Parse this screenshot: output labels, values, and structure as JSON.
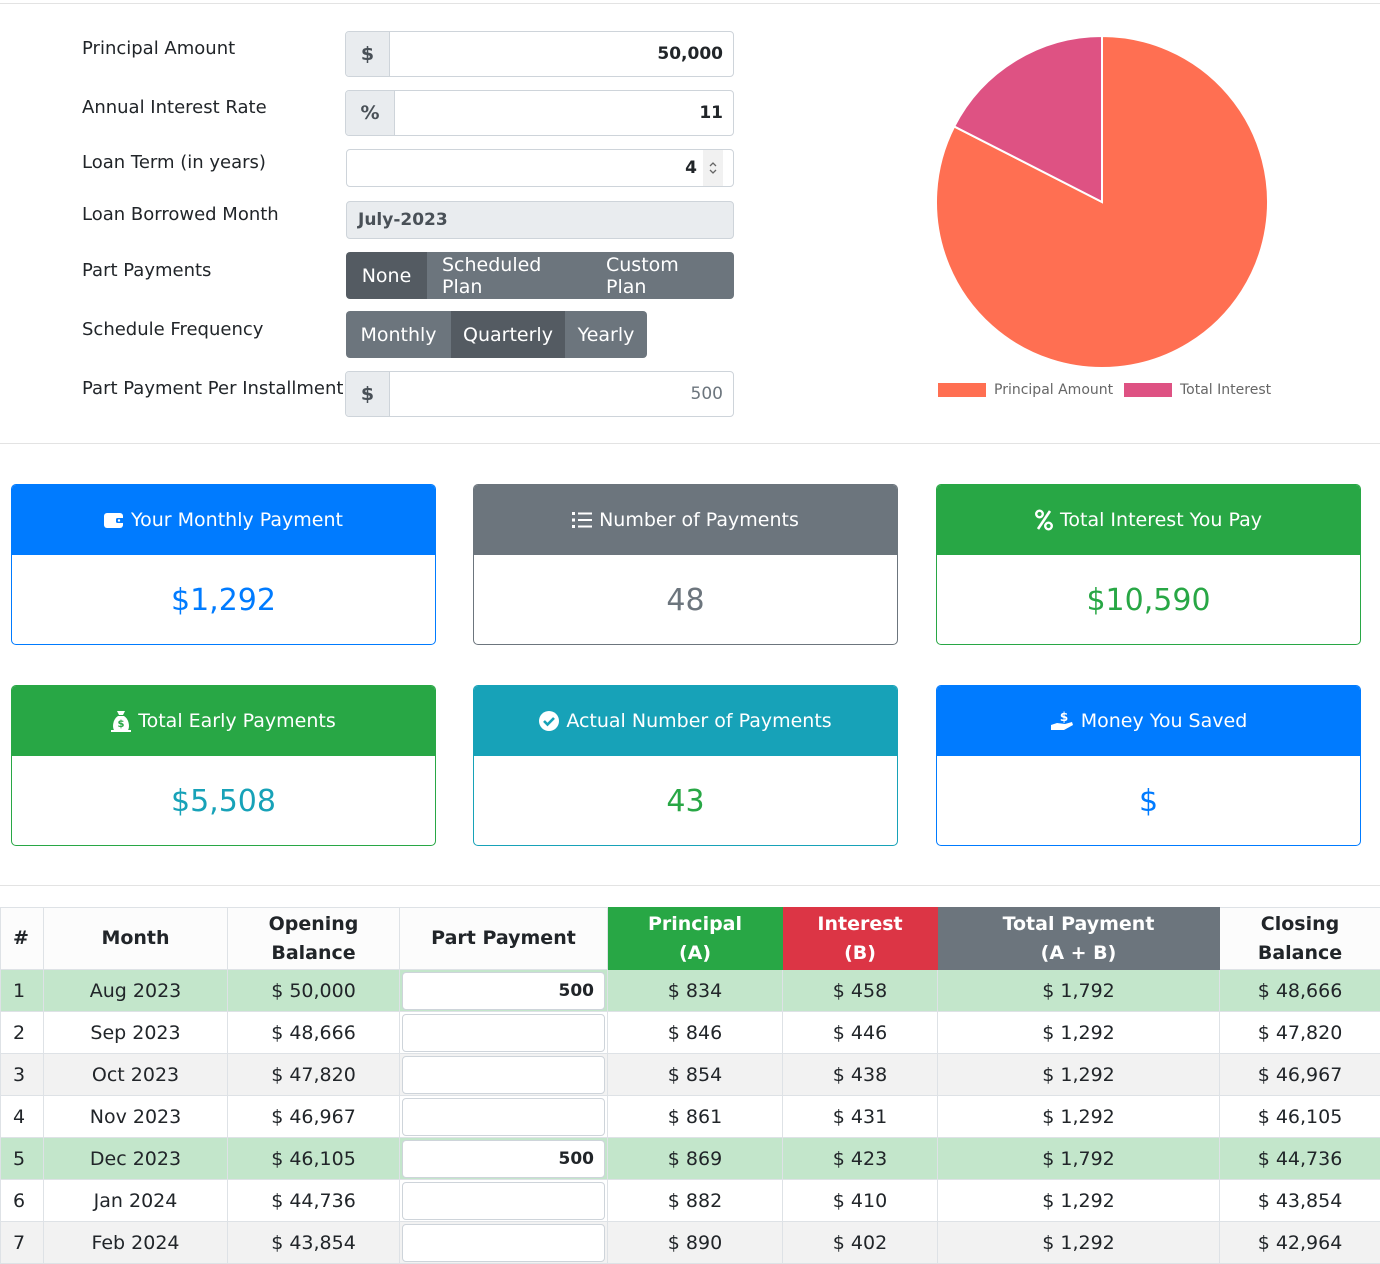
{
  "form": {
    "principal": {
      "label": "Principal Amount",
      "addon": "$",
      "value": "50,000"
    },
    "rate": {
      "label": "Annual Interest Rate",
      "addon": "%",
      "value": "11"
    },
    "term": {
      "label": "Loan Term (in years)",
      "value": "4"
    },
    "month": {
      "label": "Loan Borrowed Month",
      "value": "July-2023"
    },
    "part_payments": {
      "label": "Part Payments",
      "options": [
        "None",
        "Scheduled Plan",
        "Custom Plan"
      ],
      "selected": "None"
    },
    "frequency": {
      "label": "Schedule Frequency",
      "options": [
        "Monthly",
        "Quarterly",
        "Yearly"
      ],
      "selected": "Quarterly"
    },
    "per_installment": {
      "label": "Part Payment Per Installment",
      "addon": "$",
      "value": "500"
    }
  },
  "chart_data": {
    "type": "pie",
    "labels": [
      "Principal Amount",
      "Total Interest"
    ],
    "values": [
      50000,
      10590
    ],
    "colors": [
      "#ff6f52",
      "#de5283"
    ]
  },
  "cards": [
    {
      "title": "Your Monthly Payment",
      "value": "$1,292",
      "color": "#007bff",
      "icon": "wallet-icon"
    },
    {
      "title": "Number of Payments",
      "value": "48",
      "color": "#6c757d",
      "icon": "list-icon"
    },
    {
      "title": "Total Interest You Pay",
      "value": "$10,590",
      "color": "#28a745",
      "icon": "percent-icon"
    },
    {
      "title": "Total Early Payments",
      "value": "$5,508",
      "color": "#28a745",
      "icon": "money-bag-icon"
    },
    {
      "title": "Actual Number of Payments",
      "value": "43",
      "color": "#17a2b8",
      "icon": "check-circle-icon"
    },
    {
      "title": "Money You Saved",
      "value": "$",
      "color": "#007bff",
      "icon": "hand-dollar-icon"
    }
  ],
  "table": {
    "headers": [
      "#",
      "Month",
      "Opening Balance",
      "Part Payment",
      "Principal (A)",
      "Interest (B)",
      "Total Payment (A + B)",
      "Closing Balance"
    ],
    "header_lines": [
      [
        "#"
      ],
      [
        "Month"
      ],
      [
        "Opening",
        "Balance"
      ],
      [
        "Part Payment"
      ],
      [
        "Principal",
        "(A)"
      ],
      [
        "Interest",
        "(B)"
      ],
      [
        "Total Payment",
        "(A + B)"
      ],
      [
        "Closing",
        "Balance"
      ]
    ],
    "rows": [
      {
        "n": "1",
        "month": "Aug 2023",
        "opening": "$ 50,000",
        "part": "500",
        "principal": "$ 834",
        "interest": "$ 458",
        "total": "$ 1,792",
        "closing": "$ 48,666"
      },
      {
        "n": "2",
        "month": "Sep 2023",
        "opening": "$ 48,666",
        "part": "",
        "principal": "$ 846",
        "interest": "$ 446",
        "total": "$ 1,292",
        "closing": "$ 47,820"
      },
      {
        "n": "3",
        "month": "Oct 2023",
        "opening": "$ 47,820",
        "part": "",
        "principal": "$ 854",
        "interest": "$ 438",
        "total": "$ 1,292",
        "closing": "$ 46,967"
      },
      {
        "n": "4",
        "month": "Nov 2023",
        "opening": "$ 46,967",
        "part": "",
        "principal": "$ 861",
        "interest": "$ 431",
        "total": "$ 1,292",
        "closing": "$ 46,105"
      },
      {
        "n": "5",
        "month": "Dec 2023",
        "opening": "$ 46,105",
        "part": "500",
        "principal": "$ 869",
        "interest": "$ 423",
        "total": "$ 1,792",
        "closing": "$ 44,736"
      },
      {
        "n": "6",
        "month": "Jan 2024",
        "opening": "$ 44,736",
        "part": "",
        "principal": "$ 882",
        "interest": "$ 410",
        "total": "$ 1,292",
        "closing": "$ 43,854"
      },
      {
        "n": "7",
        "month": "Feb 2024",
        "opening": "$ 43,854",
        "part": "",
        "principal": "$ 890",
        "interest": "$ 402",
        "total": "$ 1,292",
        "closing": "$ 42,964"
      }
    ]
  }
}
